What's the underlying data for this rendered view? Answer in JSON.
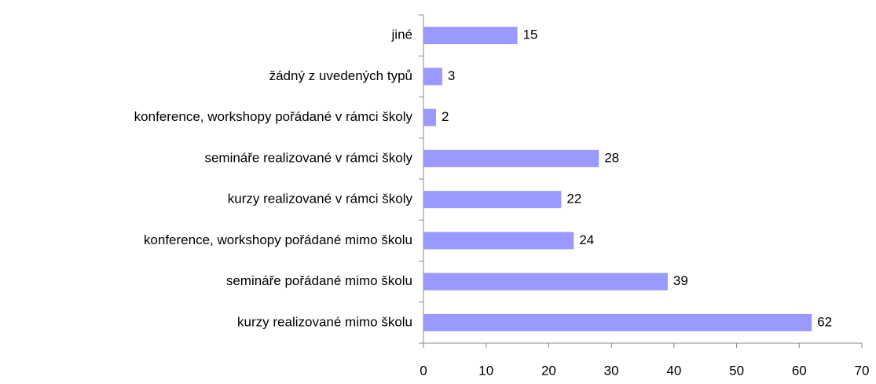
{
  "chart_data": {
    "type": "bar",
    "orientation": "horizontal",
    "categories": [
      "jiné",
      "žádný z uvedených typů",
      "konference, workshopy pořádané v rámci školy",
      "semináře realizované v rámci školy",
      "kurzy realizované v rámci školy",
      "konference, workshopy pořádané mimo školu",
      "semináře pořádané mimo školu",
      "kurzy realizované mimo školu"
    ],
    "values": [
      15,
      3,
      2,
      28,
      22,
      24,
      39,
      62
    ],
    "color": "#9999ff",
    "xlim": [
      0,
      70
    ],
    "xticks": [
      0,
      10,
      20,
      30,
      40,
      50,
      60,
      70
    ],
    "grid": false
  }
}
